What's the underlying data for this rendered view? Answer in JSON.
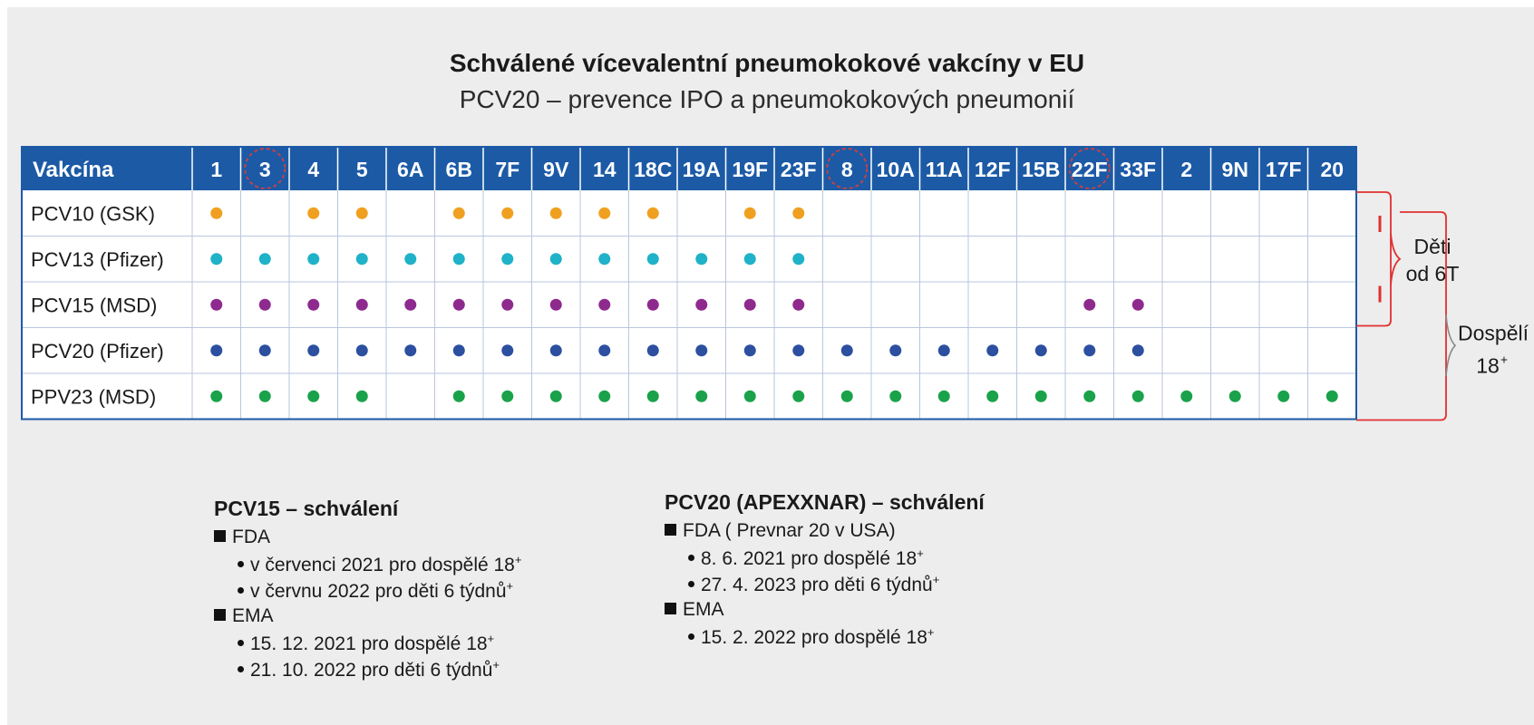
{
  "title": "Schválené vícevalentní pneumokokové vakcíny v EU",
  "subtitle": "PCV20 – prevence IPO a pneumokokových pneumonií",
  "chart_data": {
    "type": "table",
    "header_label": "Vakcína",
    "serotypes": [
      "1",
      "3",
      "4",
      "5",
      "6A",
      "6B",
      "7F",
      "9V",
      "14",
      "18C",
      "19A",
      "19F",
      "23F",
      "8",
      "10A",
      "11A",
      "12F",
      "15B",
      "22F",
      "33F",
      "2",
      "9N",
      "17F",
      "20"
    ],
    "highlighted_serotypes": [
      "3",
      "8",
      "22F"
    ],
    "rows": [
      {
        "name": "PCV10 (GSK)",
        "color": "#f0a020",
        "serotypes": [
          "1",
          "4",
          "5",
          "6B",
          "7F",
          "9V",
          "14",
          "18C",
          "19F",
          "23F"
        ]
      },
      {
        "name": "PCV13 (Pfizer)",
        "color": "#1fb2c8",
        "serotypes": [
          "1",
          "3",
          "4",
          "5",
          "6A",
          "6B",
          "7F",
          "9V",
          "14",
          "18C",
          "19A",
          "19F",
          "23F"
        ]
      },
      {
        "name": "PCV15 (MSD)",
        "color": "#8e2a8e",
        "serotypes": [
          "1",
          "3",
          "4",
          "5",
          "6A",
          "6B",
          "7F",
          "9V",
          "14",
          "18C",
          "19A",
          "19F",
          "23F",
          "22F",
          "33F"
        ]
      },
      {
        "name": "PCV20 (Pfizer)",
        "color": "#2c4fa0",
        "serotypes": [
          "1",
          "3",
          "4",
          "5",
          "6A",
          "6B",
          "7F",
          "9V",
          "14",
          "18C",
          "19A",
          "19F",
          "23F",
          "8",
          "10A",
          "11A",
          "12F",
          "15B",
          "22F",
          "33F"
        ]
      },
      {
        "name": "PPV23 (MSD)",
        "color": "#1aa24a",
        "serotypes": [
          "1",
          "3",
          "4",
          "5",
          "6B",
          "7F",
          "9V",
          "14",
          "18C",
          "19A",
          "19F",
          "23F",
          "8",
          "10A",
          "11A",
          "12F",
          "15B",
          "22F",
          "33F",
          "2",
          "9N",
          "17F",
          "20"
        ]
      }
    ],
    "brackets": [
      {
        "label_lines": [
          "Děti",
          "od 6T"
        ],
        "rows": [
          "PCV10 (GSK)",
          "PCV13 (Pfizer)",
          "PCV15 (MSD)"
        ]
      },
      {
        "label_lines": [
          "Dospělí",
          "18"
        ],
        "label_sup": "+",
        "rows": [
          "PCV15 (MSD)",
          "PCV20 (Pfizer)",
          "PPV23 (MSD)"
        ]
      }
    ],
    "colors": {
      "header_bg": "#1c5aa6",
      "border": "#1c5aa6",
      "bracket": "#e03030",
      "highlight_circle": "#d04040"
    }
  },
  "notes": [
    {
      "heading": "PCV15 – schválení",
      "groups": [
        {
          "label": "FDA",
          "items": [
            {
              "text": "v červenci 2021 pro dospělé 18",
              "sup": "+"
            },
            {
              "text": "v červnu 2022 pro děti 6 týdnů",
              "sup": "+"
            }
          ]
        },
        {
          "label": "EMA",
          "items": [
            {
              "text": "15. 12. 2021 pro dospělé 18",
              "sup": "+"
            },
            {
              "text": "21. 10. 2022 pro děti 6 týdnů",
              "sup": "+"
            }
          ]
        }
      ]
    },
    {
      "heading": "PCV20 (APEXXNAR) – schválení",
      "groups": [
        {
          "label": "FDA ( Prevnar 20 v USA)",
          "items": [
            {
              "text": "8. 6. 2021 pro dospělé 18",
              "sup": "+"
            },
            {
              "text": "27. 4. 2023 pro děti 6 týdnů",
              "sup": "+"
            }
          ]
        },
        {
          "label": "EMA",
          "items": [
            {
              "text": "15. 2. 2022 pro dospělé 18",
              "sup": "+"
            }
          ]
        }
      ]
    }
  ]
}
